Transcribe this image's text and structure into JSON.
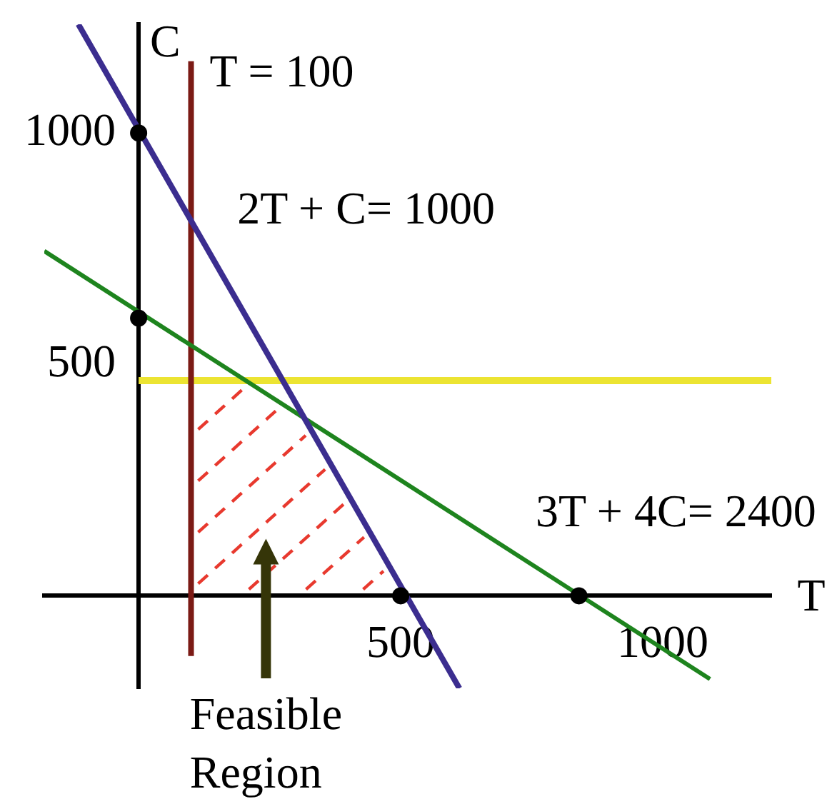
{
  "chart_data": {
    "type": "line",
    "xlabel": "T",
    "ylabel": "C",
    "xlim": [
      -180,
      1207
    ],
    "ylim": [
      -200,
      1235
    ],
    "xticks": [
      500,
      1000
    ],
    "yticks": [
      500,
      1000
    ],
    "marker": "none",
    "series": [
      {
        "type": "scatter",
        "marker": "circle",
        "color": "#000000",
        "x": [
          0,
          0,
          500,
          840
        ],
        "values": [
          1000,
          600,
          0,
          0
        ]
      },
      {
        "name": "2T + C= 1000",
        "color": "#3b2d8f",
        "x": [
          -115,
          612
        ],
        "values": [
          1235,
          -200
        ]
      },
      {
        "name": "3T + 4C= 2400",
        "color": "#1e841e",
        "x": [
          -180,
          1090
        ],
        "values": [
          745,
          -180
        ]
      },
      {
        "name": "T = 100",
        "color": "#7b1a15",
        "x": [
          100,
          100
        ],
        "values": [
          1155,
          -130
        ]
      },
      {
        "color": "#ece432",
        "x": [
          0,
          1207
        ],
        "values": [
          465,
          465
        ]
      }
    ],
    "annotations": [
      "Feasible Region"
    ]
  }
}
